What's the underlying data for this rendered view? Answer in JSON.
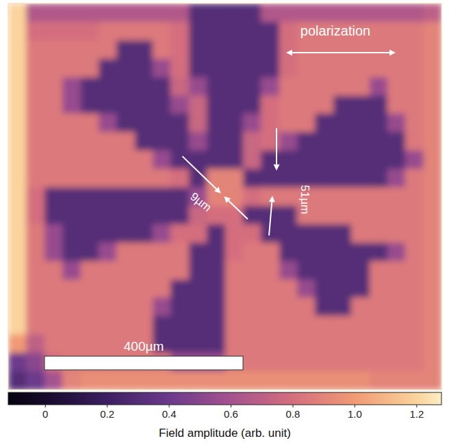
{
  "chart_data": {
    "type": "heatmap",
    "xlim": [
      0,
      873
    ],
    "ylim": [
      0,
      780
    ],
    "tick_labels": false,
    "cells": [
      [
        1.2,
        0.65,
        0.65,
        0.65,
        0.65,
        0.65,
        0.65,
        0.65,
        0.65,
        0.65,
        0.3,
        0.3,
        0.3,
        0.3,
        0.65,
        0.65,
        0.65,
        0.65,
        0.65,
        0.65,
        0.65,
        0.65,
        0.65,
        0.7
      ],
      [
        1.2,
        0.8,
        0.8,
        0.8,
        0.8,
        0.85,
        0.85,
        0.85,
        0.85,
        0.8,
        0.3,
        0.3,
        0.3,
        0.3,
        0.3,
        0.8,
        0.85,
        0.85,
        0.85,
        0.85,
        0.85,
        0.85,
        0.85,
        0.9
      ],
      [
        1.2,
        0.85,
        0.85,
        0.85,
        0.85,
        0.85,
        0.3,
        0.3,
        0.85,
        0.8,
        0.3,
        0.3,
        0.3,
        0.3,
        0.3,
        0.8,
        0.85,
        0.85,
        0.85,
        0.85,
        0.85,
        0.85,
        0.85,
        0.9
      ],
      [
        1.2,
        0.85,
        0.85,
        0.85,
        0.85,
        0.3,
        0.3,
        0.3,
        0.55,
        0.8,
        0.3,
        0.3,
        0.3,
        0.3,
        0.3,
        0.8,
        0.85,
        0.85,
        0.85,
        0.85,
        0.85,
        0.85,
        0.85,
        0.9
      ],
      [
        1.2,
        0.85,
        0.85,
        0.55,
        0.3,
        0.3,
        0.3,
        0.3,
        0.3,
        0.75,
        0.55,
        0.3,
        0.3,
        0.3,
        0.55,
        0.85,
        0.85,
        0.85,
        0.85,
        0.85,
        0.55,
        0.85,
        0.85,
        0.9
      ],
      [
        1.2,
        0.85,
        0.85,
        0.55,
        0.3,
        0.3,
        0.3,
        0.3,
        0.3,
        0.55,
        0.75,
        0.3,
        0.3,
        0.3,
        0.8,
        0.85,
        0.85,
        0.85,
        0.3,
        0.3,
        0.3,
        0.85,
        0.85,
        0.9
      ],
      [
        1.2,
        0.85,
        0.85,
        0.85,
        0.85,
        0.55,
        0.3,
        0.3,
        0.3,
        0.3,
        0.75,
        0.3,
        0.3,
        0.55,
        0.8,
        0.85,
        0.85,
        0.3,
        0.3,
        0.3,
        0.3,
        0.55,
        0.85,
        0.9
      ],
      [
        1.2,
        0.85,
        0.85,
        0.85,
        0.85,
        0.85,
        0.85,
        0.3,
        0.3,
        0.3,
        0.55,
        0.3,
        0.3,
        0.75,
        0.8,
        0.55,
        0.3,
        0.3,
        0.3,
        0.3,
        0.3,
        0.3,
        0.85,
        0.9
      ],
      [
        1.2,
        0.85,
        0.85,
        0.85,
        0.85,
        0.85,
        0.85,
        0.85,
        0.55,
        0.3,
        0.3,
        0.3,
        0.3,
        0.75,
        0.3,
        0.3,
        0.3,
        0.3,
        0.3,
        0.3,
        0.3,
        0.3,
        0.55,
        0.9
      ],
      [
        1.2,
        0.85,
        0.85,
        0.85,
        0.85,
        0.85,
        0.85,
        0.85,
        0.85,
        0.8,
        0.3,
        0.9,
        0.9,
        0.3,
        0.3,
        0.3,
        0.3,
        0.3,
        0.3,
        0.3,
        0.3,
        0.55,
        0.85,
        0.9
      ],
      [
        1.2,
        0.8,
        0.3,
        0.3,
        0.3,
        0.3,
        0.3,
        0.3,
        0.3,
        0.3,
        0.55,
        0.9,
        0.9,
        0.8,
        0.85,
        0.85,
        0.85,
        0.85,
        0.85,
        0.85,
        0.85,
        0.85,
        0.85,
        0.9
      ],
      [
        1.2,
        0.8,
        0.3,
        0.3,
        0.3,
        0.3,
        0.3,
        0.3,
        0.3,
        0.3,
        0.75,
        0.8,
        0.8,
        0.3,
        0.3,
        0.3,
        0.85,
        0.85,
        0.85,
        0.85,
        0.85,
        0.85,
        0.85,
        0.9
      ],
      [
        1.2,
        0.85,
        0.55,
        0.3,
        0.3,
        0.3,
        0.3,
        0.3,
        0.55,
        0.8,
        0.8,
        0.3,
        0.8,
        0.8,
        0.3,
        0.3,
        0.3,
        0.3,
        0.3,
        0.85,
        0.85,
        0.85,
        0.85,
        0.9
      ],
      [
        1.2,
        0.85,
        0.55,
        0.3,
        0.3,
        0.55,
        0.85,
        0.85,
        0.85,
        0.85,
        0.3,
        0.3,
        0.8,
        0.85,
        0.85,
        0.3,
        0.3,
        0.3,
        0.3,
        0.3,
        0.3,
        0.55,
        0.85,
        0.9
      ],
      [
        1.2,
        0.85,
        0.85,
        0.55,
        0.85,
        0.85,
        0.85,
        0.85,
        0.85,
        0.85,
        0.3,
        0.3,
        0.85,
        0.85,
        0.85,
        0.55,
        0.3,
        0.3,
        0.3,
        0.3,
        0.85,
        0.85,
        0.85,
        0.9
      ],
      [
        1.2,
        0.85,
        0.85,
        0.85,
        0.85,
        0.85,
        0.85,
        0.85,
        0.85,
        0.3,
        0.3,
        0.3,
        0.85,
        0.85,
        0.85,
        0.85,
        0.55,
        0.3,
        0.3,
        0.3,
        0.85,
        0.85,
        0.85,
        0.9
      ],
      [
        1.2,
        0.85,
        0.85,
        0.85,
        0.85,
        0.85,
        0.85,
        0.85,
        0.55,
        0.3,
        0.3,
        0.3,
        0.85,
        0.85,
        0.85,
        0.85,
        0.85,
        0.3,
        0.3,
        0.85,
        0.85,
        0.85,
        0.85,
        0.9
      ],
      [
        1.2,
        0.85,
        0.85,
        0.85,
        0.85,
        0.85,
        0.85,
        0.85,
        0.3,
        0.3,
        0.3,
        0.3,
        0.85,
        0.85,
        0.85,
        0.85,
        0.85,
        0.85,
        0.85,
        0.85,
        0.85,
        0.85,
        0.85,
        0.9
      ],
      [
        1.0,
        0.7,
        0.85,
        0.85,
        0.85,
        0.85,
        0.85,
        0.85,
        0.3,
        0.3,
        0.3,
        0.3,
        0.85,
        0.85,
        0.85,
        0.85,
        0.85,
        0.85,
        0.85,
        0.85,
        0.85,
        0.85,
        0.85,
        0.9
      ],
      [
        0.4,
        0.5,
        0.8,
        0.85,
        0.85,
        0.85,
        0.85,
        0.85,
        0.85,
        0.55,
        0.55,
        0.55,
        0.85,
        0.85,
        0.85,
        0.85,
        0.85,
        0.85,
        0.85,
        0.85,
        0.85,
        0.85,
        0.85,
        0.9
      ],
      [
        0.3,
        0.4,
        0.6,
        0.9,
        0.95,
        0.95,
        0.95,
        0.95,
        0.95,
        0.95,
        0.95,
        0.95,
        0.95,
        0.95,
        0.95,
        0.95,
        0.95,
        0.95,
        0.95,
        0.95,
        0.9,
        0.9,
        0.9,
        0.9
      ]
    ],
    "colorbar": {
      "label": "Field amplitude (arb. unit)",
      "range": [
        -0.12,
        1.28
      ],
      "ticks": [
        0,
        0.2,
        0.4,
        0.6,
        0.8,
        {
          "value": 1,
          "label": "1.0"
        },
        1.2
      ]
    },
    "annotations": [
      {
        "text": "polarization"
      },
      {
        "text": "9µm",
        "value": 9
      },
      {
        "text": "51µm",
        "value": 51
      }
    ],
    "scale_bar": {
      "label": "400µm",
      "value": 400
    }
  }
}
